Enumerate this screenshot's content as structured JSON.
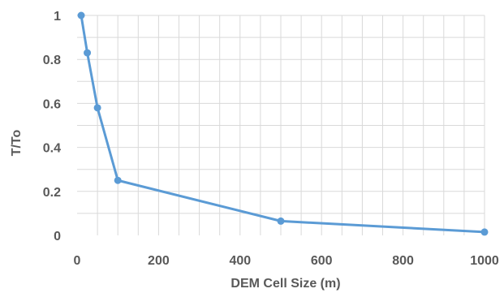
{
  "chart_data": {
    "type": "scatter",
    "title": "",
    "xlabel": "DEM Cell Size (m)",
    "ylabel": "T/To",
    "xlim": [
      0,
      1000
    ],
    "ylim": [
      0,
      1
    ],
    "xticks": [
      "0",
      "200",
      "400",
      "600",
      "800",
      "1000"
    ],
    "yticks": [
      "0",
      "0.2",
      "0.4",
      "0.6",
      "0.8",
      "1"
    ],
    "grid": true,
    "legend": "none",
    "series": [
      {
        "color": "#5b9bd5",
        "x": [
          10,
          25,
          50,
          100,
          500,
          1000
        ],
        "y": [
          1.0,
          0.83,
          0.58,
          0.25,
          0.065,
          0.015
        ]
      }
    ]
  }
}
